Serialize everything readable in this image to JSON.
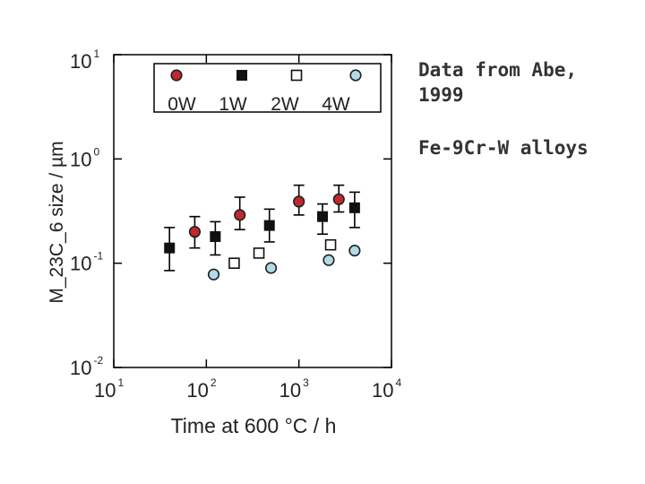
{
  "chart_data": {
    "type": "scatter",
    "xlabel": "Time at 600 °C / h",
    "ylabel": "M_23C_6 size / µm",
    "xscale": "log",
    "yscale": "log",
    "xlim": [
      10,
      10000
    ],
    "ylim": [
      0.01,
      10
    ],
    "x_ticks": [
      {
        "base": "10",
        "exp": "1",
        "value": 10
      },
      {
        "base": "10",
        "exp": "2",
        "value": 100
      },
      {
        "base": "10",
        "exp": "3",
        "value": 1000
      },
      {
        "base": "10",
        "exp": "4",
        "value": 10000
      }
    ],
    "y_ticks": [
      {
        "base": "10",
        "exp": "-2",
        "value": 0.01
      },
      {
        "base": "10",
        "exp": "-1",
        "value": 0.1
      },
      {
        "base": "10",
        "exp": "0",
        "value": 1
      },
      {
        "base": "10",
        "exp": "1",
        "value": 10
      }
    ],
    "legend_position": "top",
    "series": [
      {
        "name": "0W",
        "marker": "circle",
        "fill": "#c0282d",
        "stroke": "#222222",
        "x": [
          75,
          230,
          1000,
          2700
        ],
        "y": [
          0.2,
          0.29,
          0.39,
          0.41
        ],
        "err_low": [
          0.14,
          0.21,
          0.29,
          0.31
        ],
        "err_high": [
          0.28,
          0.43,
          0.56,
          0.56
        ]
      },
      {
        "name": "1W",
        "marker": "square",
        "fill": "#111111",
        "stroke": "#111111",
        "x": [
          40,
          125,
          480,
          1800,
          4000
        ],
        "y": [
          0.14,
          0.18,
          0.23,
          0.28,
          0.34
        ],
        "err_low": [
          0.085,
          0.12,
          0.16,
          0.19,
          0.22
        ],
        "err_high": [
          0.22,
          0.25,
          0.33,
          0.37,
          0.48
        ]
      },
      {
        "name": "2W",
        "marker": "square-open",
        "fill": "#ffffff",
        "stroke": "#111111",
        "x": [
          200,
          370,
          2200
        ],
        "y": [
          0.1,
          0.125,
          0.15
        ]
      },
      {
        "name": "4W",
        "marker": "circle",
        "fill": "#b2dbe6",
        "stroke": "#222222",
        "x": [
          120,
          500,
          2100,
          4000
        ],
        "y": [
          0.078,
          0.09,
          0.107,
          0.132
        ]
      }
    ]
  },
  "annotations": {
    "source": "Data from Abe, 1999",
    "alloy": "Fe-9Cr-W alloys"
  }
}
